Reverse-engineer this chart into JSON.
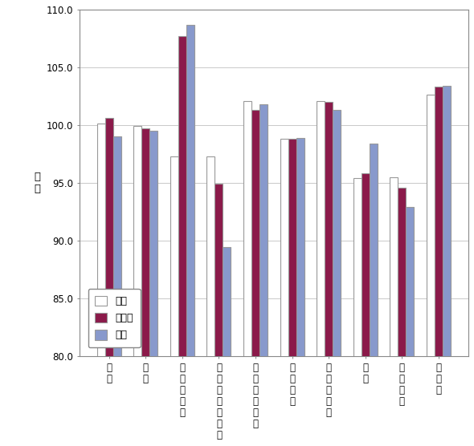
{
  "categories_display": [
    "食料",
    "住居",
    "光熱・水道",
    "家具・家事用品",
    "被服及び履物",
    "保健医療",
    "交通・通信",
    "教育",
    "教養娯楽",
    "諸雑費"
  ],
  "tsu": [
    100.1,
    99.9,
    97.3,
    97.3,
    102.1,
    98.8,
    102.1,
    95.4,
    95.5,
    102.6
  ],
  "mie": [
    100.6,
    99.7,
    107.7,
    94.9,
    101.3,
    98.8,
    102.0,
    95.8,
    94.6,
    103.3
  ],
  "zenkoku": [
    99.0,
    99.5,
    108.7,
    89.4,
    101.8,
    98.9,
    101.3,
    98.4,
    92.9,
    103.4
  ],
  "tsu_color": "#ffffff",
  "mie_color": "#8b1a4a",
  "zenkoku_color": "#8899cc",
  "ylim_min": 80.0,
  "ylim_max": 110.0,
  "yticks": [
    80.0,
    85.0,
    90.0,
    95.0,
    100.0,
    105.0,
    110.0
  ],
  "ylabel": "指数",
  "legend_labels": [
    "津市",
    "三重県",
    "全国"
  ],
  "bar_width": 0.22,
  "edgecolor": "#999999",
  "background_color": "#ffffff",
  "font_size_tick": 8.5,
  "font_size_legend": 9
}
